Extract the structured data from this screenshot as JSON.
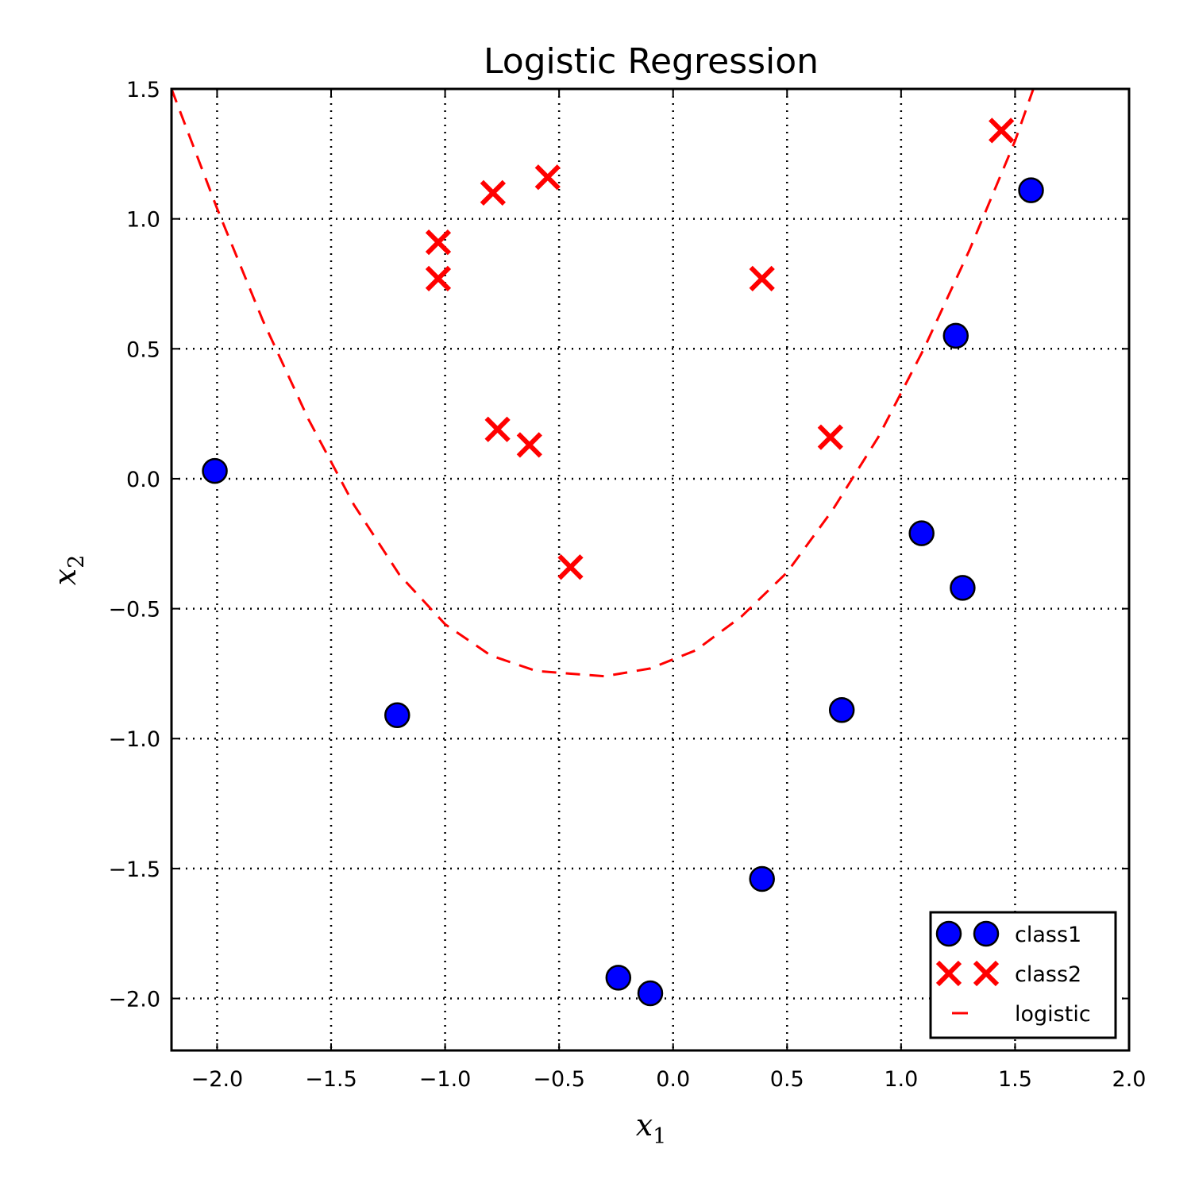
{
  "chart_data": {
    "type": "scatter",
    "title": "Logistic Regression",
    "xlabel": "x",
    "xlabel_sub": "1",
    "ylabel": "x",
    "ylabel_sub": "2",
    "xlim": [
      -2.2,
      2.0
    ],
    "ylim": [
      -2.2,
      1.5
    ],
    "xticks": [
      -2.0,
      -1.5,
      -1.0,
      -0.5,
      0.0,
      0.5,
      1.0,
      1.5,
      2.0
    ],
    "xtick_labels": [
      "−2.0",
      "−1.5",
      "−1.0",
      "−0.5",
      "0.0",
      "0.5",
      "1.0",
      "1.5",
      "2.0"
    ],
    "yticks": [
      1.5,
      1.0,
      0.5,
      0.0,
      -0.5,
      -1.0,
      -1.5,
      -2.0
    ],
    "ytick_labels": [
      "1.5",
      "1.0",
      "0.5",
      "0.0",
      "−0.5",
      "−1.0",
      "−1.5",
      "−2.0"
    ],
    "grid": true,
    "legend_position": "bottom-right",
    "series": [
      {
        "name": "class1",
        "marker": "circle",
        "color": "#0000ff",
        "points": [
          [
            -2.01,
            0.03
          ],
          [
            -1.21,
            -0.91
          ],
          [
            -0.24,
            -1.92
          ],
          [
            -0.1,
            -1.98
          ],
          [
            0.39,
            -1.54
          ],
          [
            0.74,
            -0.89
          ],
          [
            1.09,
            -0.21
          ],
          [
            1.27,
            -0.42
          ],
          [
            1.24,
            0.55
          ],
          [
            1.57,
            1.11
          ]
        ]
      },
      {
        "name": "class2",
        "marker": "x",
        "color": "#ff0000",
        "points": [
          [
            -1.03,
            0.91
          ],
          [
            -1.03,
            0.77
          ],
          [
            -0.79,
            1.1
          ],
          [
            -0.55,
            1.16
          ],
          [
            -0.77,
            0.19
          ],
          [
            -0.63,
            0.13
          ],
          [
            -0.45,
            -0.34
          ],
          [
            0.39,
            0.77
          ],
          [
            0.69,
            0.16
          ],
          [
            1.44,
            1.34
          ]
        ]
      },
      {
        "name": "logistic",
        "marker": "dashed-line",
        "color": "#ff0000",
        "points": [
          [
            -2.2,
            1.5
          ],
          [
            -2.0,
            1.04
          ],
          [
            -1.8,
            0.61
          ],
          [
            -1.6,
            0.23
          ],
          [
            -1.4,
            -0.1
          ],
          [
            -1.2,
            -0.37
          ],
          [
            -1.0,
            -0.56
          ],
          [
            -0.8,
            -0.68
          ],
          [
            -0.6,
            -0.74
          ],
          [
            -0.3,
            -0.76
          ],
          [
            -0.1,
            -0.73
          ],
          [
            0.1,
            -0.66
          ],
          [
            0.3,
            -0.53
          ],
          [
            0.5,
            -0.36
          ],
          [
            0.7,
            -0.12
          ],
          [
            0.9,
            0.16
          ],
          [
            1.1,
            0.5
          ],
          [
            1.3,
            0.88
          ],
          [
            1.5,
            1.3
          ],
          [
            1.58,
            1.5
          ]
        ]
      }
    ]
  }
}
